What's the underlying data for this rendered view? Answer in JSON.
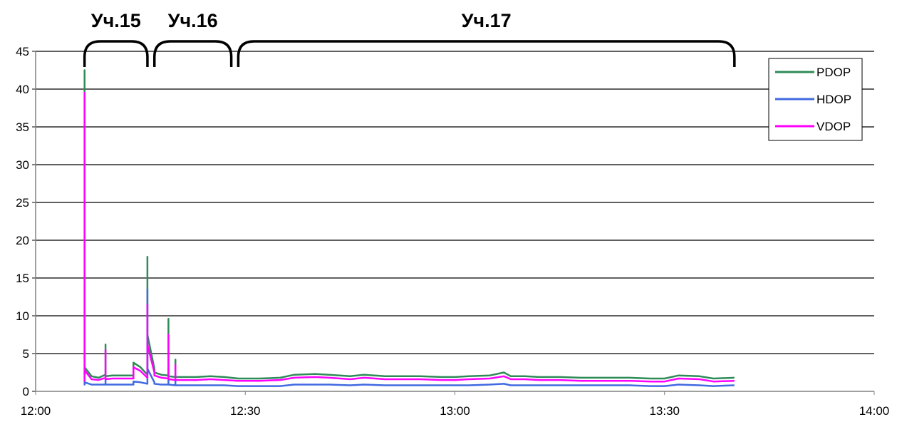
{
  "chart_data": {
    "type": "line",
    "title": "",
    "xlabel": "",
    "ylabel": "",
    "xlim": [
      "12:00",
      "14:00"
    ],
    "ylim": [
      0,
      45
    ],
    "x_ticks": [
      "12:00",
      "12:30",
      "13:00",
      "13:30",
      "14:00"
    ],
    "y_ticks": [
      "0",
      "5",
      "10",
      "15",
      "20",
      "25",
      "30",
      "35",
      "40",
      "45"
    ],
    "grid": "horizontal",
    "legend_position": "top-right",
    "sections": [
      {
        "label": "Уч.15",
        "start": "12:07",
        "end": "12:16"
      },
      {
        "label": "Уч.16",
        "start": "12:17",
        "end": "12:28"
      },
      {
        "label": "Уч.17",
        "start": "12:29",
        "end": "13:40"
      }
    ],
    "series": [
      {
        "name": "PDOP",
        "color": "#2e8b57",
        "x": [
          "12:07",
          "12:07",
          "12:07",
          "12:07",
          "12:08",
          "12:09",
          "12:10",
          "12:10",
          "12:10",
          "12:11",
          "12:12",
          "12:13",
          "12:14",
          "12:14",
          "12:15",
          "12:16",
          "12:16",
          "12:16",
          "12:16",
          "12:17",
          "12:17",
          "12:18",
          "12:19",
          "12:19",
          "12:19",
          "12:20",
          "12:20",
          "12:20",
          "12:21",
          "12:23",
          "12:25",
          "12:27",
          "12:29",
          "12:32",
          "12:35",
          "12:37",
          "12:40",
          "12:42",
          "12:45",
          "12:47",
          "12:50",
          "12:53",
          "12:55",
          "12:58",
          "13:00",
          "13:02",
          "13:05",
          "13:07",
          "13:08",
          "13:10",
          "13:12",
          "13:15",
          "13:18",
          "13:20",
          "13:22",
          "13:25",
          "13:28",
          "13:30",
          "13:32",
          "13:35",
          "13:37",
          "13:40"
        ],
        "y": [
          1.6,
          42.5,
          1.7,
          3.2,
          2.0,
          1.8,
          2.2,
          6.2,
          2.0,
          2.1,
          2.1,
          2.1,
          2.1,
          3.8,
          3.2,
          2.2,
          6.0,
          17.8,
          7.5,
          3.0,
          2.5,
          2.2,
          2.1,
          9.6,
          2.0,
          1.9,
          4.2,
          1.9,
          1.9,
          1.9,
          2.0,
          1.9,
          1.7,
          1.7,
          1.8,
          2.2,
          2.3,
          2.2,
          2.0,
          2.2,
          2.0,
          2.0,
          2.0,
          1.9,
          1.9,
          2.0,
          2.1,
          2.5,
          2.0,
          2.0,
          1.9,
          1.9,
          1.8,
          1.8,
          1.8,
          1.8,
          1.7,
          1.7,
          2.1,
          2.0,
          1.7,
          1.8
        ]
      },
      {
        "name": "HDOP",
        "color": "#4169e1",
        "x": [
          "12:07",
          "12:07",
          "12:07",
          "12:07",
          "12:08",
          "12:09",
          "12:10",
          "12:10",
          "12:10",
          "12:11",
          "12:12",
          "12:13",
          "12:14",
          "12:14",
          "12:15",
          "12:16",
          "12:16",
          "12:16",
          "12:16",
          "12:17",
          "12:17",
          "12:18",
          "12:19",
          "12:19",
          "12:19",
          "12:20",
          "12:20",
          "12:20",
          "12:21",
          "12:23",
          "12:25",
          "12:27",
          "12:29",
          "12:32",
          "12:35",
          "12:37",
          "12:40",
          "12:42",
          "12:45",
          "12:47",
          "12:50",
          "12:53",
          "12:55",
          "12:58",
          "13:00",
          "13:02",
          "13:05",
          "13:07",
          "13:08",
          "13:10",
          "13:12",
          "13:15",
          "13:18",
          "13:20",
          "13:22",
          "13:25",
          "13:28",
          "13:30",
          "13:32",
          "13:35",
          "13:37",
          "13:40"
        ],
        "y": [
          0.8,
          14.0,
          0.9,
          1.2,
          0.9,
          0.9,
          0.9,
          1.8,
          0.9,
          0.9,
          0.9,
          0.9,
          0.9,
          1.3,
          1.2,
          1.0,
          2.0,
          13.5,
          3.0,
          1.2,
          1.0,
          0.9,
          0.9,
          3.0,
          0.9,
          0.8,
          1.5,
          0.8,
          0.8,
          0.8,
          0.8,
          0.8,
          0.7,
          0.7,
          0.7,
          0.9,
          0.9,
          0.9,
          0.8,
          0.9,
          0.8,
          0.8,
          0.8,
          0.8,
          0.8,
          0.8,
          0.9,
          1.0,
          0.8,
          0.8,
          0.8,
          0.8,
          0.8,
          0.8,
          0.8,
          0.8,
          0.7,
          0.7,
          0.9,
          0.8,
          0.7,
          0.8
        ]
      },
      {
        "name": "VDOP",
        "color": "#ff00ff",
        "x": [
          "12:07",
          "12:07",
          "12:07",
          "12:07",
          "12:08",
          "12:09",
          "12:10",
          "12:10",
          "12:10",
          "12:11",
          "12:12",
          "12:13",
          "12:14",
          "12:14",
          "12:15",
          "12:16",
          "12:16",
          "12:16",
          "12:16",
          "12:17",
          "12:17",
          "12:18",
          "12:19",
          "12:19",
          "12:19",
          "12:20",
          "12:20",
          "12:20",
          "12:21",
          "12:23",
          "12:25",
          "12:27",
          "12:29",
          "12:32",
          "12:35",
          "12:37",
          "12:40",
          "12:42",
          "12:45",
          "12:47",
          "12:50",
          "12:53",
          "12:55",
          "12:58",
          "13:00",
          "13:02",
          "13:05",
          "13:07",
          "13:08",
          "13:10",
          "13:12",
          "13:15",
          "13:18",
          "13:20",
          "13:22",
          "13:25",
          "13:28",
          "13:30",
          "13:32",
          "13:35",
          "13:37",
          "13:40"
        ],
        "y": [
          1.3,
          39.5,
          1.4,
          2.8,
          1.6,
          1.5,
          1.8,
          5.5,
          1.6,
          1.7,
          1.7,
          1.7,
          1.7,
          3.2,
          2.7,
          1.8,
          5.0,
          11.5,
          6.2,
          2.5,
          2.1,
          1.8,
          1.7,
          7.5,
          1.6,
          1.5,
          3.5,
          1.5,
          1.5,
          1.5,
          1.6,
          1.5,
          1.4,
          1.4,
          1.5,
          1.8,
          1.9,
          1.8,
          1.6,
          1.8,
          1.6,
          1.6,
          1.6,
          1.5,
          1.5,
          1.6,
          1.7,
          2.0,
          1.6,
          1.6,
          1.5,
          1.5,
          1.4,
          1.4,
          1.4,
          1.4,
          1.3,
          1.3,
          1.7,
          1.6,
          1.3,
          1.4
        ]
      }
    ]
  }
}
